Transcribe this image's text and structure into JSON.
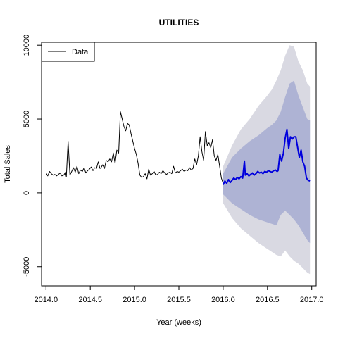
{
  "chart_data": {
    "type": "line",
    "title": "UTILITIES",
    "xlabel": "Year (weeks)",
    "ylabel": "Total Sales",
    "xlim": [
      2013.95,
      2017.05
    ],
    "ylim": [
      -6300,
      10200
    ],
    "x_ticks": [
      2014.0,
      2014.5,
      2015.0,
      2015.5,
      2016.0,
      2016.5,
      2017.0
    ],
    "x_tick_labels": [
      "2014.0",
      "2014.5",
      "2015.0",
      "2015.5",
      "2016.0",
      "2016.5",
      "2017.0"
    ],
    "y_ticks": [
      -5000,
      0,
      5000,
      10000
    ],
    "y_tick_labels": [
      "-5000",
      "0",
      "5000",
      "10000"
    ],
    "legend": {
      "position": "top-left",
      "entries": [
        "Data"
      ]
    },
    "colors": {
      "data": "#000000",
      "forecast": "#0000dd",
      "band_80": "#aeb3d4",
      "band_95": "#d9d9e2"
    },
    "series": [
      {
        "name": "Data",
        "role": "history",
        "x": [
          2014.0,
          2014.02,
          2014.04,
          2014.06,
          2014.08,
          2014.1,
          2014.12,
          2014.14,
          2014.16,
          2014.18,
          2014.2,
          2014.22,
          2014.23,
          2014.25,
          2014.27,
          2014.29,
          2014.31,
          2014.33,
          2014.35,
          2014.37,
          2014.39,
          2014.41,
          2014.43,
          2014.45,
          2014.47,
          2014.49,
          2014.51,
          2014.53,
          2014.55,
          2014.57,
          2014.59,
          2014.61,
          2014.62,
          2014.64,
          2014.66,
          2014.68,
          2014.7,
          2014.72,
          2014.74,
          2014.76,
          2014.78,
          2014.8,
          2014.82,
          2014.84,
          2014.86,
          2014.88,
          2014.9,
          2014.92,
          2014.94,
          2014.96,
          2014.98,
          2015.0,
          2015.02,
          2015.04,
          2015.06,
          2015.08,
          2015.1,
          2015.12,
          2015.14,
          2015.16,
          2015.18,
          2015.2,
          2015.22,
          2015.24,
          2015.26,
          2015.28,
          2015.3,
          2015.32,
          2015.34,
          2015.36,
          2015.38,
          2015.4,
          2015.42,
          2015.44,
          2015.46,
          2015.48,
          2015.5,
          2015.52,
          2015.54,
          2015.56,
          2015.58,
          2015.6,
          2015.62,
          2015.64,
          2015.66,
          2015.68,
          2015.7,
          2015.72,
          2015.74,
          2015.76,
          2015.78,
          2015.8,
          2015.82,
          2015.84,
          2015.86,
          2015.88,
          2015.9,
          2015.92,
          2015.94,
          2015.96,
          2015.98,
          2016.0
        ],
        "y": [
          1350,
          1150,
          1450,
          1300,
          1200,
          1250,
          1150,
          1250,
          1350,
          1150,
          1200,
          1400,
          1100,
          3500,
          1200,
          1450,
          1700,
          1400,
          1800,
          1300,
          1550,
          1450,
          1700,
          1350,
          1500,
          1600,
          1750,
          1500,
          1700,
          1650,
          2100,
          1650,
          1700,
          1900,
          1650,
          2200,
          2100,
          2300,
          2100,
          2700,
          2000,
          2900,
          2700,
          5500,
          5000,
          4500,
          4200,
          4700,
          4600,
          4000,
          3500,
          3000,
          2600,
          2000,
          1200,
          1050,
          1100,
          1300,
          950,
          1600,
          1200,
          1300,
          1450,
          1200,
          1250,
          1400,
          1300,
          1500,
          1350,
          1250,
          1350,
          1400,
          1300,
          1800,
          1350,
          1450,
          1400,
          1500,
          1600,
          1450,
          1550,
          1500,
          1700,
          1550,
          1650,
          2300,
          1900,
          2500,
          3800,
          2800,
          2200,
          4150,
          3200,
          3400,
          3050,
          3600,
          2500,
          2200,
          2600,
          1800,
          1000,
          650
        ]
      },
      {
        "name": "",
        "role": "forecast",
        "x": [
          2016.0,
          2016.02,
          2016.04,
          2016.06,
          2016.08,
          2016.1,
          2016.12,
          2016.14,
          2016.16,
          2016.18,
          2016.2,
          2016.22,
          2016.24,
          2016.25,
          2016.27,
          2016.29,
          2016.31,
          2016.33,
          2016.35,
          2016.37,
          2016.39,
          2016.41,
          2016.43,
          2016.45,
          2016.47,
          2016.49,
          2016.51,
          2016.53,
          2016.55,
          2016.57,
          2016.59,
          2016.61,
          2016.62,
          2016.64,
          2016.66,
          2016.68,
          2016.7,
          2016.72,
          2016.74,
          2016.76,
          2016.78,
          2016.8,
          2016.82,
          2016.84,
          2016.86,
          2016.88,
          2016.9,
          2016.92,
          2016.94,
          2016.96,
          2016.98
        ],
        "y": [
          550,
          800,
          650,
          900,
          700,
          850,
          1000,
          900,
          1050,
          950,
          1100,
          1000,
          2150,
          1200,
          1300,
          1150,
          1250,
          1350,
          1200,
          1300,
          1450,
          1350,
          1400,
          1300,
          1450,
          1400,
          1500,
          1450,
          1400,
          1500,
          1550,
          1450,
          1500,
          2600,
          2150,
          2700,
          3700,
          4300,
          3000,
          3800,
          3650,
          3800,
          3800,
          3100,
          2400,
          2900,
          2100,
          1800,
          1000,
          850,
          800
        ]
      }
    ],
    "bands": [
      {
        "level": "95",
        "x": [
          2016.0,
          2016.1,
          2016.2,
          2016.3,
          2016.4,
          2016.5,
          2016.55,
          2016.6,
          2016.65,
          2016.7,
          2016.75,
          2016.8,
          2016.85,
          2016.9,
          2016.95,
          2016.98
        ],
        "upper": [
          1800,
          3200,
          4300,
          5000,
          5900,
          6600,
          7000,
          7600,
          8300,
          9300,
          10000,
          9900,
          8900,
          8300,
          7400,
          7200
        ],
        "lower": [
          -700,
          -1700,
          -2400,
          -2900,
          -3400,
          -3800,
          -4000,
          -4200,
          -4300,
          -3900,
          -4300,
          -4600,
          -4800,
          -5100,
          -5400,
          -5500
        ]
      },
      {
        "level": "80",
        "x": [
          2016.0,
          2016.1,
          2016.2,
          2016.3,
          2016.4,
          2016.5,
          2016.55,
          2016.6,
          2016.65,
          2016.7,
          2016.75,
          2016.8,
          2016.85,
          2016.9,
          2016.95,
          2016.98
        ],
        "upper": [
          1300,
          2400,
          3000,
          3500,
          3900,
          4400,
          4600,
          4900,
          5500,
          6500,
          7400,
          7600,
          6600,
          5800,
          5000,
          4900
        ],
        "lower": [
          -100,
          -700,
          -1100,
          -1500,
          -1800,
          -2000,
          -2100,
          -2200,
          -1500,
          -1200,
          -1500,
          -1800,
          -2200,
          -2700,
          -3200,
          -3400
        ]
      }
    ]
  }
}
